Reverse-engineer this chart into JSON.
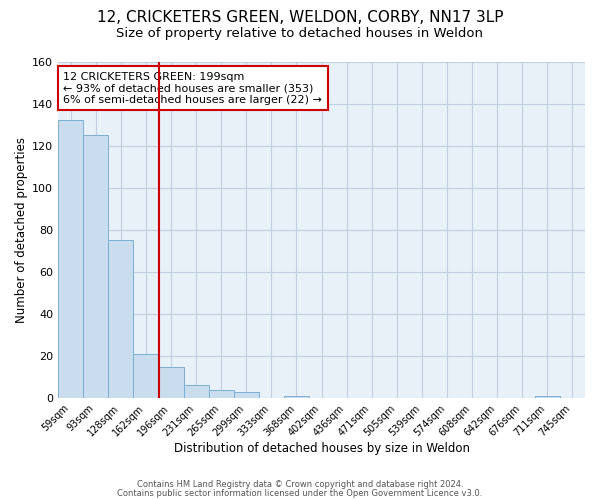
{
  "title": "12, CRICKETERS GREEN, WELDON, CORBY, NN17 3LP",
  "subtitle": "Size of property relative to detached houses in Weldon",
  "xlabel": "Distribution of detached houses by size in Weldon",
  "ylabel": "Number of detached properties",
  "bar_labels": [
    "59sqm",
    "93sqm",
    "128sqm",
    "162sqm",
    "196sqm",
    "231sqm",
    "265sqm",
    "299sqm",
    "333sqm",
    "368sqm",
    "402sqm",
    "436sqm",
    "471sqm",
    "505sqm",
    "539sqm",
    "574sqm",
    "608sqm",
    "642sqm",
    "676sqm",
    "711sqm",
    "745sqm"
  ],
  "bar_values": [
    132,
    125,
    75,
    21,
    15,
    6,
    4,
    3,
    0,
    1,
    0,
    0,
    0,
    0,
    0,
    0,
    0,
    0,
    0,
    1,
    0
  ],
  "bar_color": "#c9ddef",
  "bar_edge_color": "#7ab0d4",
  "ylim": [
    0,
    160
  ],
  "yticks": [
    0,
    20,
    40,
    60,
    80,
    100,
    120,
    140,
    160
  ],
  "vline_x": 3.5,
  "vline_color": "#cc0000",
  "annotation_text": "12 CRICKETERS GREEN: 199sqm\n← 93% of detached houses are smaller (353)\n6% of semi-detached houses are larger (22) →",
  "annotation_box_color": "#ffffff",
  "annotation_box_edge": "#cc0000",
  "footer_line1": "Contains HM Land Registry data © Crown copyright and database right 2024.",
  "footer_line2": "Contains public sector information licensed under the Open Government Licence v3.0.",
  "bg_color": "#ffffff",
  "plot_bg_color": "#e8f0f8",
  "grid_color": "#c0d0e0",
  "title_fontsize": 11,
  "subtitle_fontsize": 9.5,
  "xlabel_fontsize": 8.5,
  "ylabel_fontsize": 8.5
}
